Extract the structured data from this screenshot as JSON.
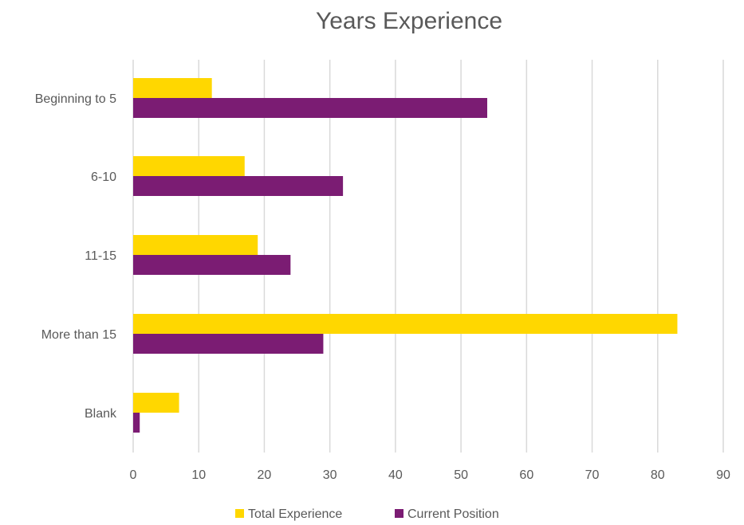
{
  "chart_data": {
    "type": "bar",
    "orientation": "horizontal",
    "title": "Years Experience",
    "categories": [
      "Beginning to 5",
      "6-10",
      "11-15",
      "More than 15",
      "Blank"
    ],
    "series": [
      {
        "name": "Total Experience",
        "color": "#FFD700",
        "values": [
          12,
          17,
          19,
          83,
          7
        ]
      },
      {
        "name": "Current Position",
        "color": "#7B1C73",
        "values": [
          54,
          32,
          24,
          29,
          1
        ]
      }
    ],
    "x_ticks": [
      "0",
      "10",
      "20",
      "30",
      "40",
      "50",
      "60",
      "70",
      "80",
      "90"
    ],
    "xlim": [
      0,
      90
    ],
    "grid": "vertical",
    "legend_position": "bottom"
  }
}
